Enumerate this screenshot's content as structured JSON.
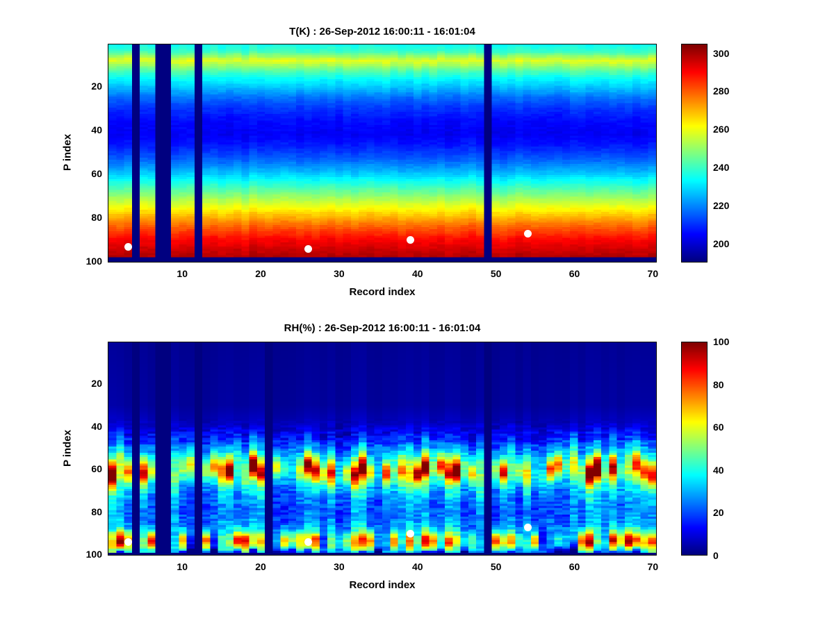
{
  "figure": {
    "background": "#ffffff",
    "text_color": "#000000",
    "marker_color": "#ffffff",
    "missing_color": "#00008f"
  },
  "chart_data": [
    {
      "type": "heatmap",
      "kind": "temperature",
      "title": "T(K) : 26-Sep-2012 16:00:11 - 16:01:04",
      "xlabel": "Record index",
      "ylabel": "P index",
      "colormap": "jet",
      "x_range": [
        1,
        70
      ],
      "y_range": [
        1,
        100
      ],
      "y_axis_reversed": true,
      "x_ticks": [
        10,
        20,
        30,
        40,
        50,
        60,
        70
      ],
      "y_ticks": [
        20,
        40,
        60,
        80,
        100
      ],
      "clim": [
        190,
        305
      ],
      "colorbar_ticks": [
        200,
        220,
        240,
        260,
        280,
        300
      ],
      "missing_records": [
        4,
        7,
        8,
        12,
        49
      ],
      "bottom_missing_rows": 2,
      "markers": [
        [
          3,
          93
        ],
        [
          26,
          94
        ],
        [
          39,
          90
        ],
        [
          54,
          87
        ]
      ],
      "profile": {
        "p": [
          1,
          4,
          6,
          8,
          10,
          13,
          16,
          20,
          25,
          30,
          36,
          42,
          48,
          54,
          60,
          66,
          72,
          78,
          84,
          90,
          95,
          98
        ],
        "v": [
          235,
          240,
          250,
          259,
          252,
          242,
          234,
          227,
          217,
          210,
          205,
          203,
          208,
          216,
          227,
          240,
          253,
          266,
          279,
          290,
          296,
          299
        ]
      },
      "noise": {
        "seed": 42,
        "col_jitter": 0.6,
        "col_offset": 1.2,
        "cell": 1.4,
        "col_gain": 0,
        "band_gain": 0,
        "surf_min": 0,
        "surf_max": 0,
        "band_center": 60,
        "band_sigma": 5.5,
        "surf_center": 94,
        "surf_sigma": 4.5
      }
    },
    {
      "type": "heatmap",
      "kind": "rh",
      "title": "RH(%) : 26-Sep-2012 16:00:11 - 16:01:04",
      "xlabel": "Record index",
      "ylabel": "P index",
      "colormap": "jet",
      "x_range": [
        1,
        70
      ],
      "y_range": [
        1,
        100
      ],
      "y_axis_reversed": true,
      "x_ticks": [
        10,
        20,
        30,
        40,
        50,
        60,
        70
      ],
      "y_ticks": [
        20,
        40,
        60,
        80,
        100
      ],
      "clim": [
        0,
        100
      ],
      "colorbar_ticks": [
        0,
        20,
        40,
        60,
        80,
        100
      ],
      "missing_records": [
        4,
        7,
        8,
        12,
        21,
        49
      ],
      "bottom_missing_rows": 1,
      "markers": [
        [
          3,
          94
        ],
        [
          26,
          94
        ],
        [
          39,
          90
        ],
        [
          54,
          87
        ]
      ],
      "profile": {
        "p": [
          1,
          30,
          38,
          43,
          47,
          51,
          55,
          58,
          60,
          62,
          65,
          68,
          72,
          76,
          80,
          85,
          90,
          94,
          97,
          99,
          100
        ],
        "v": [
          2,
          3,
          6,
          12,
          20,
          30,
          48,
          62,
          70,
          68,
          52,
          38,
          30,
          25,
          23,
          26,
          30,
          34,
          30,
          22,
          0
        ]
      },
      "noise": {
        "seed": 7,
        "col_jitter": 2.5,
        "col_offset": 0,
        "cell": 6,
        "col_gain": 0.35,
        "band_gain": 0.45,
        "surf_min": -15,
        "surf_max": 60,
        "band_center": 60,
        "band_sigma": 5.5,
        "surf_center": 94,
        "surf_sigma": 4.5
      }
    }
  ]
}
